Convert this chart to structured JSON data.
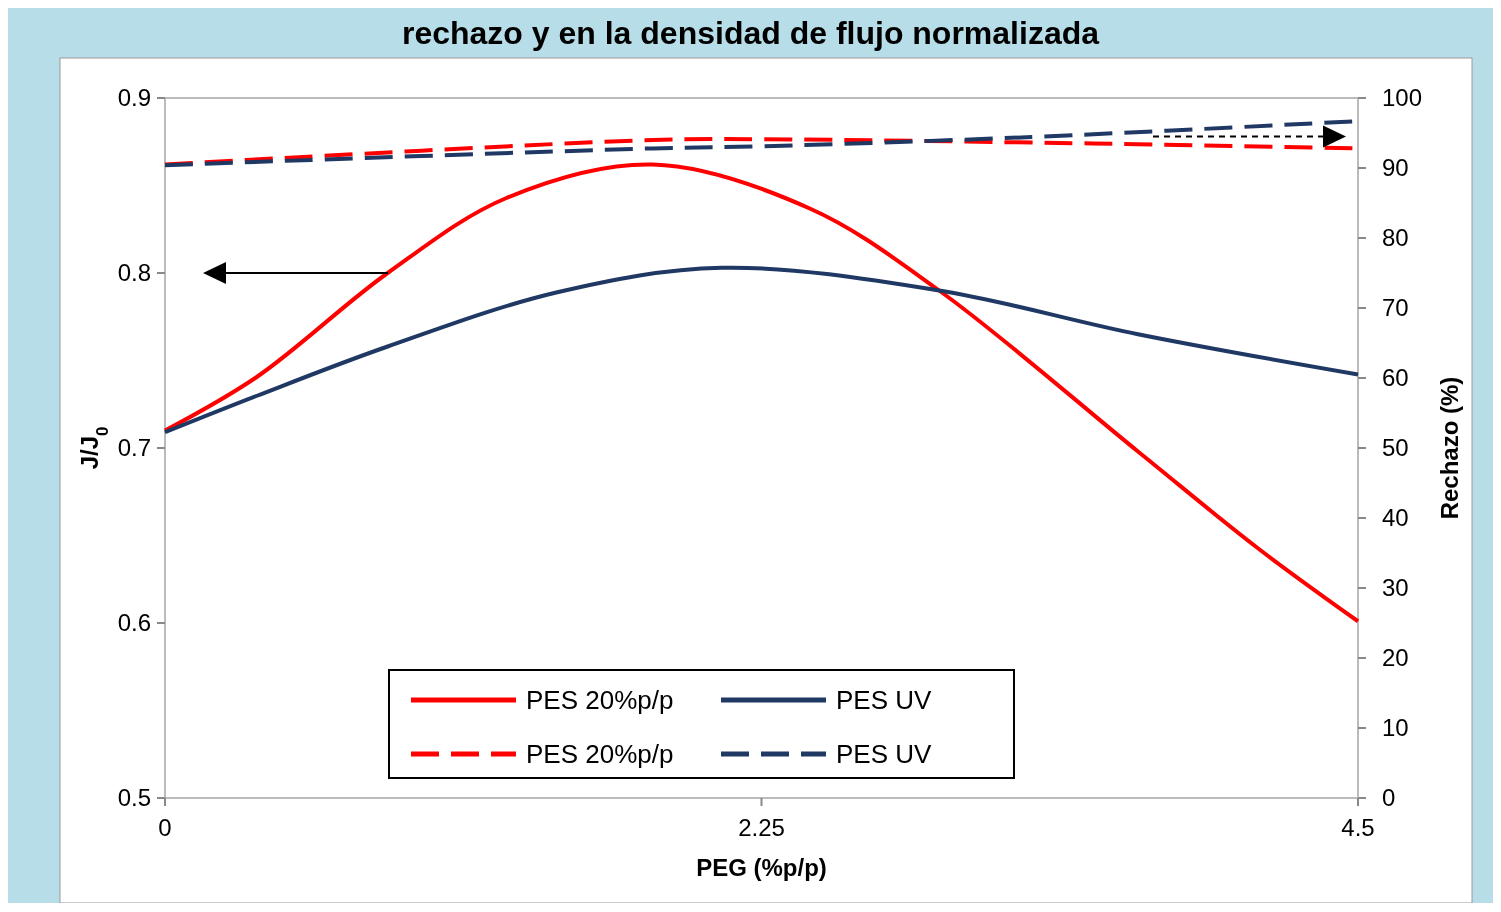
{
  "chart_data": {
    "type": "line",
    "title": "rechazo y en la densidad de flujo normalizada",
    "xlabel": "PEG (%p/p)",
    "ylabel": "J/J$_{0}$",
    "y2label": "Rechazo (%)",
    "xlim": [
      0,
      4.5
    ],
    "xticks": [
      0,
      2.25,
      4.5
    ],
    "ylim": [
      0.5,
      0.9
    ],
    "yticks": [
      0.5,
      0.6,
      0.7,
      0.8,
      0.9
    ],
    "y2lim": [
      0,
      100
    ],
    "y2ticks": [
      0,
      10,
      20,
      30,
      40,
      50,
      60,
      70,
      80,
      90,
      100
    ],
    "grid": false,
    "legend": "bottom",
    "series": [
      {
        "name": "PES 20%p/p",
        "color": "#ff0000",
        "line_style": "solid",
        "x": [
          0,
          0.35,
          0.84,
          1.29,
          1.84,
          2.43,
          2.92,
          3.67,
          4.12,
          4.5
        ],
        "values": [
          0.71,
          0.741,
          0.8,
          0.843,
          0.862,
          0.837,
          0.79,
          0.698,
          0.643,
          0.601
        ]
      },
      {
        "name": "PES UV",
        "color": "#1f3864",
        "line_style": "solid",
        "x": [
          0,
          0.35,
          0.84,
          1.48,
          2.1,
          2.92,
          3.67,
          4.5
        ],
        "values": [
          0.709,
          0.73,
          0.758,
          0.789,
          0.803,
          0.79,
          0.765,
          0.742
        ]
      },
      {
        "name": "PES 20%p/p",
        "color": "#ff0000",
        "line_style": "dashed",
        "axis": "y2",
        "x": [
          0,
          1.84,
          2.25,
          3.5,
          4.5
        ],
        "values": [
          90.5,
          94,
          94.1,
          93.5,
          92.8
        ]
      },
      {
        "name": "PES UV",
        "color": "#1f3864",
        "line_style": "dashed",
        "axis": "y2",
        "x": [
          0,
          1.84,
          2.25,
          3.25,
          4.5
        ],
        "values": [
          90.4,
          92.8,
          93.1,
          94.4,
          96.7
        ]
      }
    ]
  }
}
